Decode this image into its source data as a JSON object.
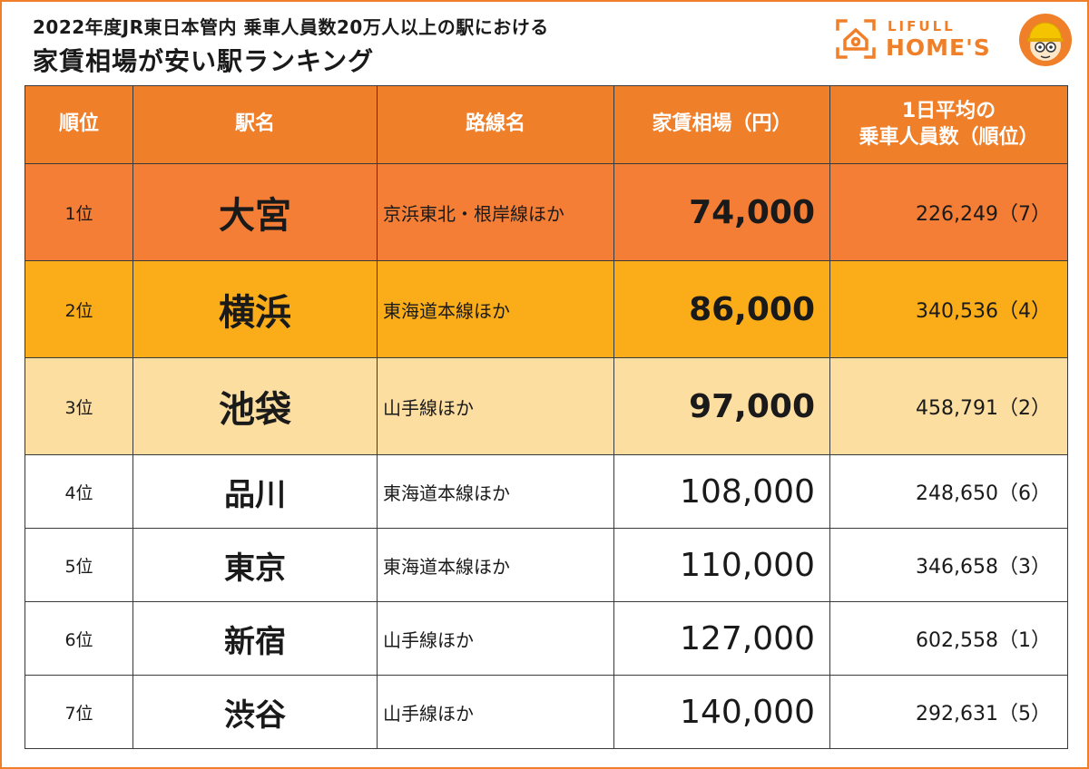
{
  "header": {
    "subtitle": "2022年度JR東日本管内  乗車人員数20万人以上の駅における",
    "title": "家賃相場が安い駅ランキング"
  },
  "logo": {
    "line1": "LIFULL",
    "line2": "HOME'S",
    "icon": "house-icon",
    "mascot": "mascot-icon",
    "color": "#f07f2a"
  },
  "table": {
    "columns": [
      "順位",
      "駅名",
      "路線名",
      "家賃相場（円）",
      "1日平均の",
      "乗車人員数（順位）"
    ],
    "rows": [
      {
        "rank": "1位",
        "station": "大宮",
        "line": "京浜東北・根岸線ほか",
        "rent": "74,000",
        "riders": "226,249（7）"
      },
      {
        "rank": "2位",
        "station": "横浜",
        "line": "東海道本線ほか",
        "rent": "86,000",
        "riders": "340,536（4）"
      },
      {
        "rank": "3位",
        "station": "池袋",
        "line": "山手線ほか",
        "rent": "97,000",
        "riders": "458,791（2）"
      },
      {
        "rank": "4位",
        "station": "品川",
        "line": "東海道本線ほか",
        "rent": "108,000",
        "riders": "248,650（6）"
      },
      {
        "rank": "5位",
        "station": "東京",
        "line": "東海道本線ほか",
        "rent": "110,000",
        "riders": "346,658（3）"
      },
      {
        "rank": "6位",
        "station": "新宿",
        "line": "山手線ほか",
        "rent": "127,000",
        "riders": "602,558（1）"
      },
      {
        "rank": "7位",
        "station": "渋谷",
        "line": "山手線ほか",
        "rent": "140,000",
        "riders": "292,631（5）"
      }
    ]
  },
  "colors": {
    "header": "#f07f2a",
    "rank1": "#f47e36",
    "rank2": "#fbad19",
    "rank3": "#fddea1"
  }
}
